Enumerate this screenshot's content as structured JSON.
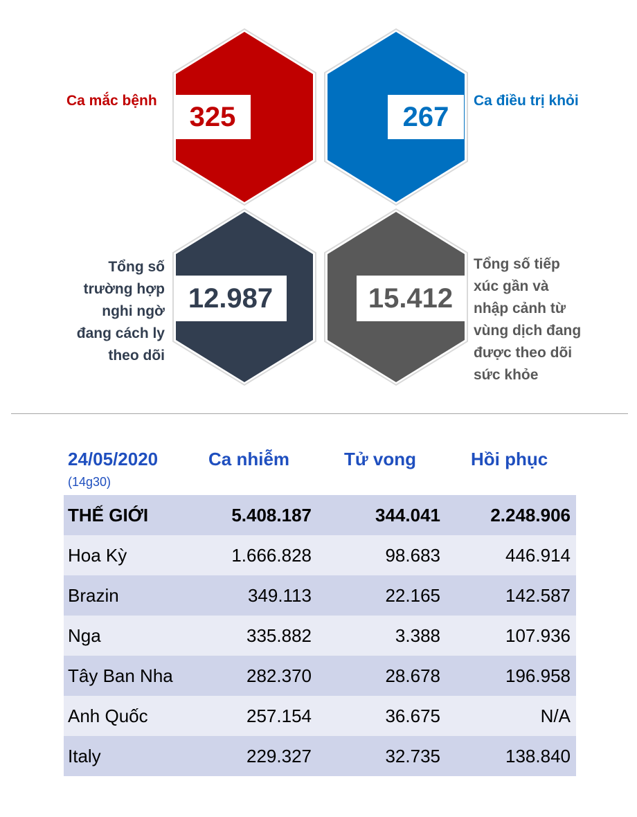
{
  "stats": {
    "cases": {
      "label": "Ca mắc bệnh",
      "value": "325",
      "color": "#c00000"
    },
    "recovered": {
      "label": "Ca điều trị khỏi",
      "value": "267",
      "color": "#0070c0"
    },
    "suspected": {
      "label_lines": [
        "Tổng số",
        "trường hợp",
        "nghi ngờ",
        "đang cách ly",
        "theo dõi"
      ],
      "value": "12.987",
      "color": "#323e50"
    },
    "contacts": {
      "label_lines": [
        "Tổng số tiếp",
        "xúc gần và",
        "nhập cảnh từ",
        "vùng dịch đang",
        "được theo dõi",
        "sức khỏe"
      ],
      "value": "15.412",
      "color": "#595959"
    }
  },
  "table": {
    "date": "24/05/2020",
    "time": "(14g30)",
    "columns": [
      "Ca nhiễm",
      "Tử vong",
      "Hồi phục"
    ],
    "rows": [
      {
        "name": "THẾ GIỚI",
        "infected": "5.408.187",
        "deaths": "344.041",
        "recovered": "2.248.906"
      },
      {
        "name": "Hoa Kỳ",
        "infected": "1.666.828",
        "deaths": "98.683",
        "recovered": "446.914"
      },
      {
        "name": "Brazin",
        "infected": "349.113",
        "deaths": "22.165",
        "recovered": "142.587"
      },
      {
        "name": "Nga",
        "infected": "335.882",
        "deaths": "3.388",
        "recovered": "107.936"
      },
      {
        "name": "Tây Ban Nha",
        "infected": "282.370",
        "deaths": "28.678",
        "recovered": "196.958"
      },
      {
        "name": "Anh Quốc",
        "infected": "257.154",
        "deaths": "36.675",
        "recovered": "N/A"
      },
      {
        "name": "Italy",
        "infected": "229.327",
        "deaths": "32.735",
        "recovered": "138.840"
      }
    ]
  }
}
